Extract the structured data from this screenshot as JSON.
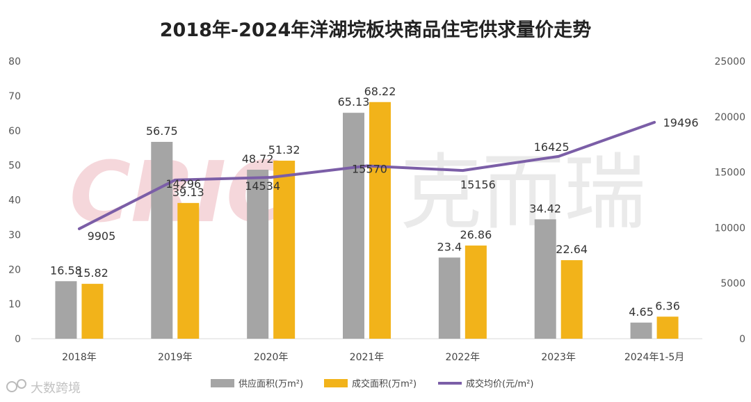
{
  "chart_data": {
    "type": "bar",
    "title": "2018年-2024年洋湖垸板块商品住宅供求量价走势",
    "categories": [
      "2018年",
      "2019年",
      "2020年",
      "2021年",
      "2022年",
      "2023年",
      "2024年1-5月"
    ],
    "series": [
      {
        "name": "供应面积(万m²)",
        "type": "bar",
        "axis": "left",
        "color": "#a5a5a5",
        "values": [
          16.58,
          56.75,
          48.72,
          65.13,
          23.4,
          34.42,
          4.65
        ],
        "labels": [
          "16.58",
          "56.75",
          "48.72",
          "65.13",
          "23.4",
          "34.42",
          "4.65"
        ]
      },
      {
        "name": "成交面积(万m²)",
        "type": "bar",
        "axis": "left",
        "color": "#f2b31a",
        "values": [
          15.82,
          39.13,
          51.32,
          68.22,
          26.86,
          22.64,
          6.36
        ],
        "labels": [
          "15.82",
          "39.13",
          "51.32",
          "68.22",
          "26.86",
          "22.64",
          "6.36"
        ]
      },
      {
        "name": "成交均价(元/m²)",
        "type": "line",
        "axis": "right",
        "color": "#7b5ea7",
        "values": [
          9905,
          14296,
          14534,
          15570,
          15156,
          16425,
          19496
        ],
        "labels": [
          "9905",
          "14296",
          "14534",
          "15570",
          "15156",
          "16425",
          "19496"
        ]
      }
    ],
    "y_left": {
      "ylim": [
        0,
        80
      ],
      "ticks": [
        "0",
        "10",
        "20",
        "30",
        "40",
        "50",
        "60",
        "70",
        "80"
      ]
    },
    "y_right": {
      "ylim": [
        0,
        25000
      ],
      "ticks": [
        "0",
        "5000",
        "10000",
        "15000",
        "20000",
        "25000"
      ]
    },
    "legend_position": "bottom",
    "grid": false
  },
  "watermark": {
    "latin": "CRIC",
    "cjk": "克而瑞"
  },
  "source_badge": {
    "text": "大数跨境",
    "icon": "brand-logo-icon"
  }
}
